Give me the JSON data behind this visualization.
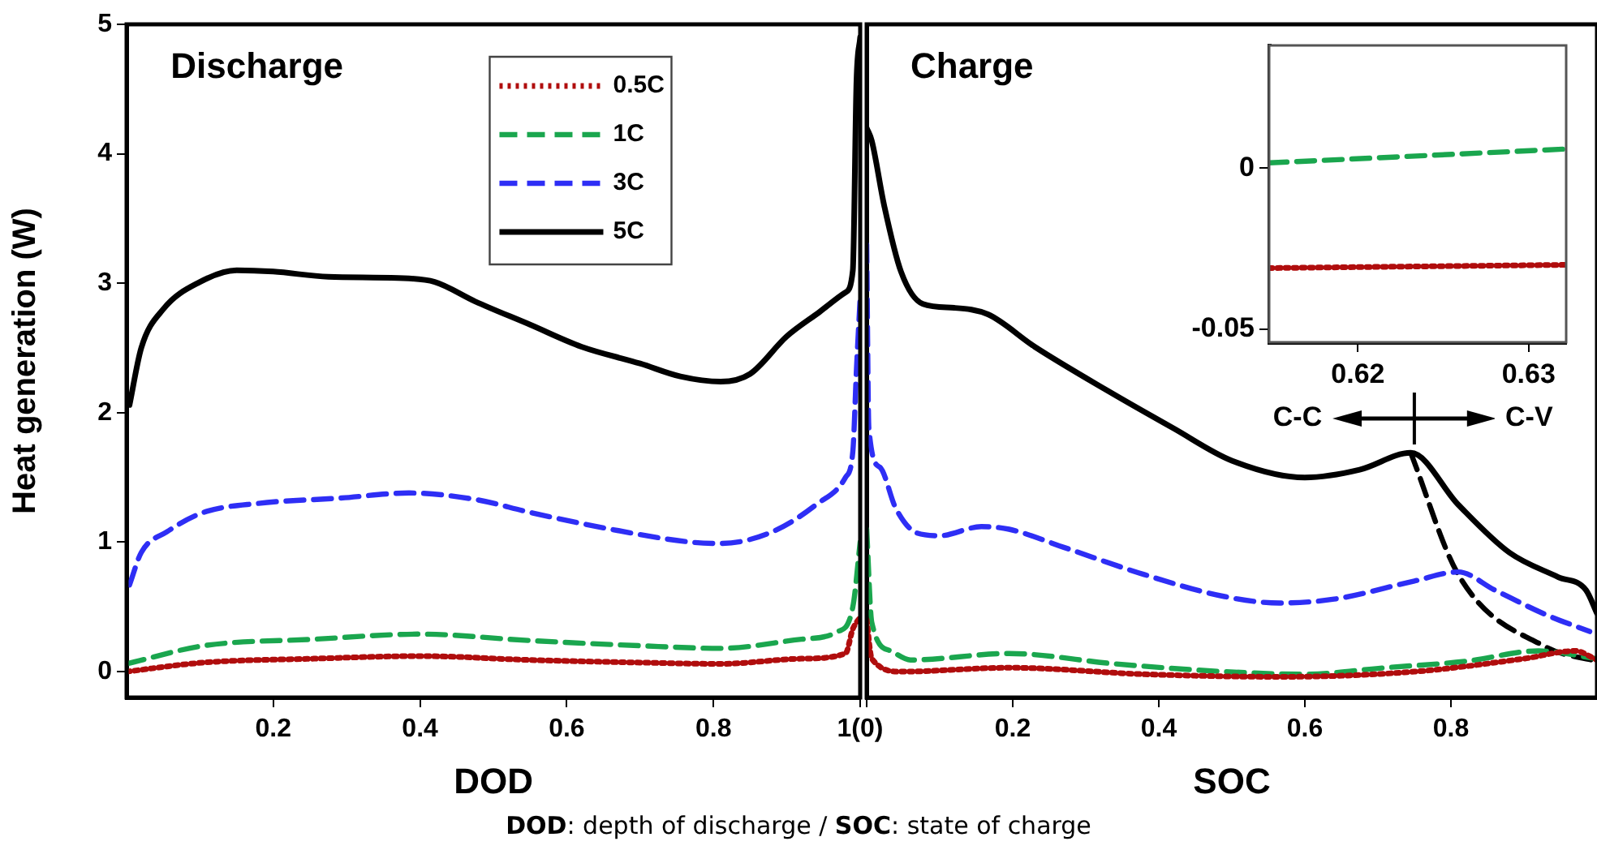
{
  "chart_data": [
    {
      "type": "line",
      "xlabel": "DOD",
      "ylabel": "Heat generation (W)",
      "xlim": [
        0,
        1
      ],
      "ylim": [
        -0.2,
        5
      ],
      "xticks": [
        0.2,
        0.4,
        0.6,
        0.8,
        {
          "value": 1,
          "label": "1(0)"
        }
      ],
      "yticks": [
        0,
        1,
        2,
        3,
        4,
        5
      ],
      "legend": "top right",
      "annotations": [
        "Discharge",
        "DOD: depth of discharge / SOC: state of charge"
      ],
      "series": [
        {
          "name": "0.5C",
          "color": "#b00d0d",
          "line_style": "dotted",
          "x": [
            0,
            0.105,
            0.255,
            0.4,
            0.55,
            0.7,
            0.81,
            0.92,
            0.98,
            0.99,
            1.0
          ],
          "values": [
            0.0,
            0.07,
            0.1,
            0.12,
            0.09,
            0.07,
            0.06,
            0.1,
            0.14,
            0.33,
            0.42
          ]
        },
        {
          "name": "1C",
          "color": "#1aa64e",
          "line_style": "dashed",
          "x": [
            0,
            0.105,
            0.255,
            0.4,
            0.55,
            0.7,
            0.81,
            0.92,
            0.97,
            0.99,
            1.0
          ],
          "values": [
            0.06,
            0.2,
            0.25,
            0.29,
            0.24,
            0.2,
            0.18,
            0.25,
            0.31,
            0.5,
            1.0
          ]
        },
        {
          "name": "3C",
          "color": "#2e2ef5",
          "line_style": "dashed",
          "x": [
            0.004,
            0.02,
            0.055,
            0.105,
            0.18,
            0.29,
            0.385,
            0.475,
            0.55,
            0.66,
            0.77,
            0.81,
            0.88,
            0.94,
            0.98,
            0.99,
            0.995,
            1.0
          ],
          "values": [
            0.67,
            0.92,
            1.08,
            1.23,
            1.3,
            1.34,
            1.38,
            1.33,
            1.23,
            1.1,
            1.0,
            0.99,
            1.08,
            1.29,
            1.5,
            1.7,
            2.34,
            2.89
          ]
        },
        {
          "name": "5C",
          "color": "#000000",
          "line_style": "solid",
          "x": [
            0.004,
            0.02,
            0.05,
            0.1,
            0.15,
            0.2,
            0.275,
            0.37,
            0.42,
            0.475,
            0.55,
            0.62,
            0.7,
            0.755,
            0.81,
            0.85,
            0.9,
            0.945,
            0.98,
            0.99,
            0.995,
            1.0
          ],
          "values": [
            2.06,
            2.5,
            2.8,
            3.01,
            3.1,
            3.09,
            3.05,
            3.04,
            3.01,
            2.86,
            2.68,
            2.51,
            2.38,
            2.28,
            2.24,
            2.3,
            2.59,
            2.78,
            2.93,
            3.1,
            4.56,
            4.9
          ]
        }
      ]
    },
    {
      "type": "line",
      "xlabel": "SOC",
      "xlim": [
        0,
        1
      ],
      "ylim": [
        -0.2,
        5
      ],
      "xticks": [
        {
          "value": 0,
          "label": null
        },
        0.2,
        0.4,
        0.6,
        0.8
      ],
      "yticks": [
        0,
        1,
        2,
        3,
        4,
        5
      ],
      "tick_labels": "x",
      "annotations": [
        "Charge",
        "C-C",
        "C-V"
      ],
      "series": [
        {
          "color": "#b00d0d",
          "line_style": "dotted",
          "x": [
            0,
            0.007,
            0.047,
            0.195,
            0.38,
            0.565,
            0.75,
            0.9,
            0.97,
            1.0
          ],
          "values": [
            0.4,
            0.1,
            0.0,
            0.03,
            -0.02,
            -0.04,
            0.0,
            0.1,
            0.16,
            0.09
          ]
        },
        {
          "color": "#1aa64e",
          "line_style": "dashed",
          "x": [
            0,
            0.007,
            0.033,
            0.06,
            0.195,
            0.34,
            0.49,
            0.6,
            0.71,
            0.82,
            0.92,
            1.0
          ],
          "values": [
            1.1,
            0.38,
            0.16,
            0.09,
            0.14,
            0.06,
            0.0,
            -0.02,
            0.03,
            0.08,
            0.16,
            0.1
          ]
        },
        {
          "color": "#2e2ef5",
          "line_style": "dashed",
          "x": [
            0,
            0.003,
            0.018,
            0.04,
            0.069,
            0.1,
            0.157,
            0.195,
            0.27,
            0.38,
            0.49,
            0.565,
            0.64,
            0.75,
            0.81,
            0.86,
            0.93,
            0.99
          ],
          "values": [
            3.3,
            1.88,
            1.58,
            1.26,
            1.07,
            1.05,
            1.12,
            1.1,
            0.96,
            0.75,
            0.58,
            0.53,
            0.56,
            0.7,
            0.77,
            0.63,
            0.44,
            0.31
          ]
        },
        {
          "color": "#000000",
          "line_style": "solid",
          "x": [
            0,
            0.007,
            0.024,
            0.047,
            0.077,
            0.12,
            0.166,
            0.23,
            0.33,
            0.42,
            0.5,
            0.6,
            0.675,
            0.745,
            0.81,
            0.88,
            0.947,
            0.985,
            1.0
          ],
          "values": [
            4.2,
            4.1,
            3.6,
            3.09,
            2.84,
            2.81,
            2.76,
            2.51,
            2.17,
            1.88,
            1.63,
            1.5,
            1.56,
            1.69,
            1.29,
            0.92,
            0.73,
            0.63,
            0.45
          ]
        },
        {
          "color": "#000000",
          "line_style": "dashed",
          "x": [
            0.745,
            0.81,
            0.93,
            1.0
          ],
          "values": [
            1.69,
            0.75,
            0.19,
            0.08
          ]
        }
      ]
    },
    {
      "type": "line",
      "xlim": [
        0.6148,
        0.6322
      ],
      "ylim": [
        -0.054,
        0.038
      ],
      "xticks": [
        0.62,
        0.63
      ],
      "yticks": [
        -0.05,
        0
      ],
      "series": [
        {
          "color": "#b00d0d",
          "line_style": "dotted",
          "x": [
            0.6148,
            0.6322
          ],
          "values": [
            -0.031,
            -0.03
          ]
        },
        {
          "color": "#1aa64e",
          "line_style": "dashed",
          "x": [
            0.6148,
            0.6322
          ],
          "values": [
            0.0016,
            0.0059
          ]
        }
      ]
    }
  ]
}
